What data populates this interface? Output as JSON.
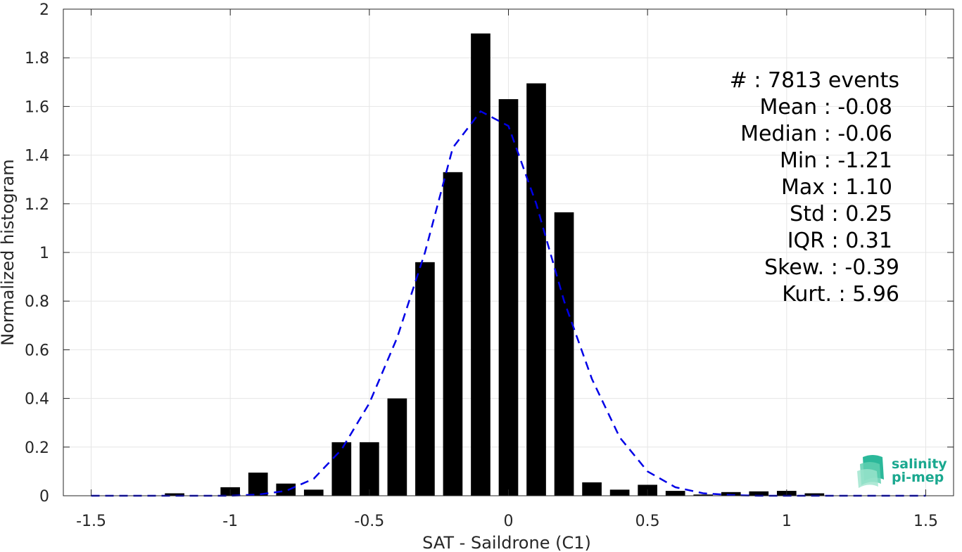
{
  "chart_data": {
    "type": "bar",
    "xlabel": "SAT - Saildrone (C1)",
    "ylabel": "Normalized histogram",
    "xlim": [
      -1.5,
      1.5
    ],
    "ylim": [
      0,
      2
    ],
    "xticks": [
      "-1.5",
      "-1",
      "-0.5",
      "0",
      "0.5",
      "1",
      "1.5"
    ],
    "yticks": [
      "0",
      "0.2",
      "0.4",
      "0.6",
      "0.8",
      "1",
      "1.2",
      "1.4",
      "1.6",
      "1.8",
      "2"
    ],
    "grid": true,
    "bar_color": "#000000",
    "bar_width": 0.07,
    "bars": {
      "x": [
        -1.2,
        -1.1,
        -1.0,
        -0.9,
        -0.8,
        -0.7,
        -0.6,
        -0.5,
        -0.4,
        -0.3,
        -0.2,
        -0.1,
        0.0,
        0.1,
        0.2,
        0.3,
        0.4,
        0.5,
        0.6,
        0.7,
        0.8,
        0.9,
        1.0,
        1.1
      ],
      "values": [
        0.01,
        0.0,
        0.035,
        0.095,
        0.05,
        0.025,
        0.22,
        0.22,
        0.4,
        0.96,
        1.33,
        1.9,
        1.63,
        1.695,
        1.165,
        0.055,
        0.025,
        0.045,
        0.02,
        0.005,
        0.015,
        0.018,
        0.02,
        0.01
      ]
    },
    "fit_curve": {
      "color": "#0000e6",
      "style": "dashed",
      "x": [
        -1.5,
        -1.4,
        -1.3,
        -1.2,
        -1.1,
        -1.0,
        -0.9,
        -0.8,
        -0.7,
        -0.6,
        -0.5,
        -0.4,
        -0.3,
        -0.2,
        -0.1,
        0.0,
        0.1,
        0.2,
        0.3,
        0.4,
        0.5,
        0.6,
        0.7,
        0.8,
        0.9,
        1.0,
        1.1,
        1.2,
        1.3,
        1.4,
        1.5
      ],
      "y": [
        0.0,
        0.0,
        0.0,
        0.0,
        0.0,
        0.0,
        0.005,
        0.02,
        0.07,
        0.19,
        0.38,
        0.65,
        1.0,
        1.43,
        1.58,
        1.52,
        1.2,
        0.8,
        0.48,
        0.24,
        0.1,
        0.035,
        0.01,
        0.003,
        0.0,
        0.0,
        0.0,
        0.0,
        0.0,
        0.0,
        0.0
      ]
    },
    "annotations": [
      "#  : 7813 events",
      "Mean : -0.08",
      "Median : -0.06",
      "Min : -1.21",
      "Max : 1.10",
      "Std : 0.25",
      "IQR : 0.31",
      "Skew. : -0.39",
      "Kurt. : 5.96"
    ]
  },
  "logo": {
    "line1": "salinity",
    "line2": "pi-mep",
    "color": "#1aa88f"
  }
}
